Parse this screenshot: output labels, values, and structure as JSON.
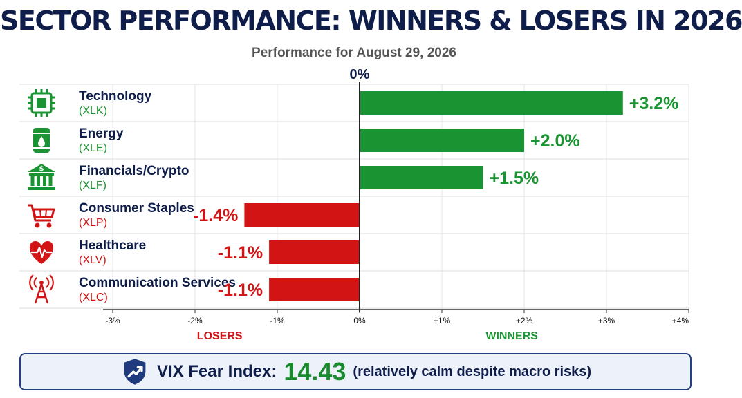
{
  "header": {
    "title": "SECTOR PERFORMANCE: WINNERS & LOSERS IN 2026",
    "subtitle": "Performance for August 29, 2026"
  },
  "chart_data": {
    "type": "bar",
    "orientation": "horizontal",
    "title": "SECTOR PERFORMANCE: WINNERS & LOSERS IN 2026",
    "subtitle": "Performance for August 29, 2026",
    "categories": [
      "Technology",
      "Energy",
      "Financials/Crypto",
      "Consumer Staples",
      "Healthcare",
      "Communication Services"
    ],
    "tickers": [
      "(XLK)",
      "(XLE)",
      "(XLF)",
      "(XLP)",
      "(XLV)",
      "(XLC)"
    ],
    "values": [
      3.2,
      2.0,
      1.5,
      -1.4,
      -1.1,
      -1.1
    ],
    "value_labels": [
      "+3.2%",
      "+2.0%",
      "+1.5%",
      "-1.4%",
      "-1.1%",
      "-1.1%"
    ],
    "icons": [
      "chip-icon",
      "oil-barrel-icon",
      "bank-icon",
      "shopping-cart-icon",
      "heartbeat-icon",
      "radio-tower-icon"
    ],
    "xlim": [
      -3,
      4
    ],
    "xticks": [
      -3,
      -2,
      -1,
      0,
      1,
      2,
      3,
      4
    ],
    "xtick_labels": [
      "-3%",
      "-2%",
      "-1%",
      "0%",
      "+1%",
      "+2%",
      "+3%",
      "+4%"
    ],
    "zero_label": "0%",
    "negative_side_label": "LOSERS",
    "positive_side_label": "WINNERS",
    "grid": true,
    "colors": {
      "positive": "#1a9432",
      "negative": "#d21414",
      "text": "#0f1d4a"
    }
  },
  "vix": {
    "label": "VIX Fear Index:",
    "value": "14.43",
    "note": "(relatively calm despite macro risks)"
  }
}
